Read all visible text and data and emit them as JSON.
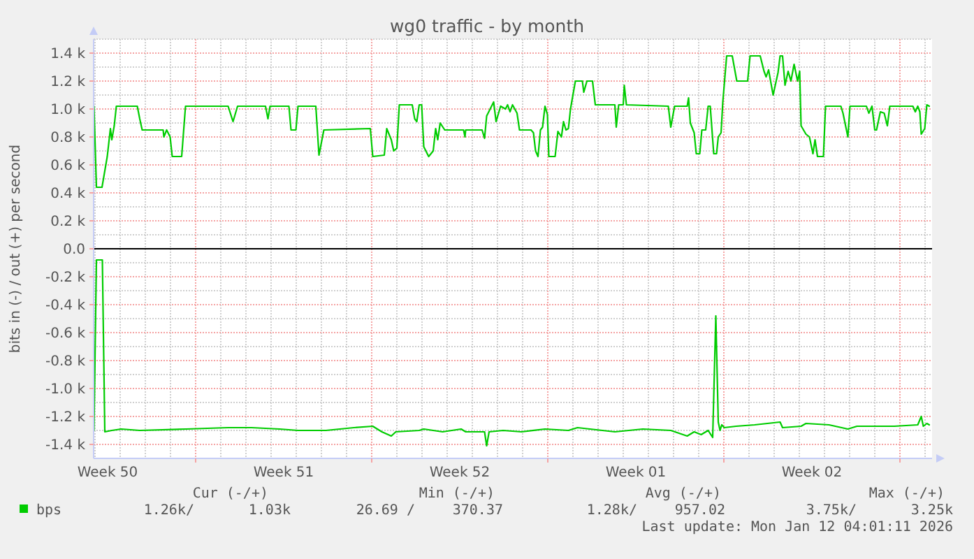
{
  "chart_data": {
    "type": "line",
    "title": "wg0 traffic - by month",
    "ylabel": "bits in (-) / out (+) per second",
    "xlim": [
      "2025-12-09T22:40",
      "2026-01-12T06:40"
    ],
    "xticks": [
      {
        "value": "2025-12-10T12:00",
        "label": "Week 50"
      },
      {
        "value": "2025-12-14T00:00",
        "label": null
      },
      {
        "value": "2025-12-17T12:00",
        "label": "Week 51"
      },
      {
        "value": "2025-12-21T00:00",
        "label": null
      },
      {
        "value": "2025-12-24T12:00",
        "label": "Week 52"
      },
      {
        "value": "2025-12-28T00:00",
        "label": null
      },
      {
        "value": "2025-12-31T12:00",
        "label": "Week 01"
      },
      {
        "value": "2026-01-04T00:00",
        "label": null
      },
      {
        "value": "2026-01-07T12:00",
        "label": "Week 02"
      },
      {
        "value": "2026-01-11T00:00",
        "label": null
      }
    ],
    "ylim": [
      -1500,
      1500
    ],
    "yticks": [
      {
        "value": -1400,
        "label": "-1.4 k"
      },
      {
        "value": -1200,
        "label": "-1.2 k"
      },
      {
        "value": -1000,
        "label": "-1.0 k"
      },
      {
        "value": -800,
        "label": "-0.8 k"
      },
      {
        "value": -600,
        "label": "-0.6 k"
      },
      {
        "value": -400,
        "label": "-0.4 k"
      },
      {
        "value": -200,
        "label": "-0.2 k"
      },
      {
        "value": 0,
        "label": "0.0"
      },
      {
        "value": 200,
        "label": "0.2 k"
      },
      {
        "value": 400,
        "label": "0.4 k"
      },
      {
        "value": 600,
        "label": "0.6 k"
      },
      {
        "value": 800,
        "label": "0.8 k"
      },
      {
        "value": 1000,
        "label": "1.0 k"
      },
      {
        "value": 1200,
        "label": "1.2 k"
      },
      {
        "value": 1400,
        "label": "1.4 k"
      }
    ],
    "grid": true,
    "legend": "bottom",
    "ref_lines": [
      {
        "axis": "y",
        "value": 0,
        "color": "#000000"
      }
    ],
    "series": [
      {
        "name": "bps",
        "color": "#00cc00",
        "x": [
          "2025-12-09T23:00",
          "2025-12-10T01:20",
          "2025-12-10T06:40",
          "2025-12-10T11:40",
          "2025-12-10T14:40",
          "2025-12-10T16:00",
          "2025-12-10T18:20",
          "2025-12-10T20:20",
          "2025-12-11T16:20",
          "2025-12-11T18:40",
          "2025-12-11T21:00",
          "2025-12-12T17:00",
          "2025-12-12T17:40",
          "2025-12-12T20:20",
          "2025-12-12T23:40",
          "2025-12-13T01:40",
          "2025-12-13T10:40",
          "2025-12-13T14:20",
          "2025-12-15T07:00",
          "2025-12-15T11:40",
          "2025-12-15T16:00",
          "2025-12-16T18:40",
          "2025-12-16T21:00",
          "2025-12-16T23:00",
          "2025-12-17T17:00",
          "2025-12-17T19:00",
          "2025-12-17T23:40",
          "2025-12-18T01:40",
          "2025-12-18T18:40",
          "2025-12-18T21:40",
          "2025-12-19T02:20",
          "2025-12-20T22:40",
          "2025-12-21T01:00",
          "2025-12-21T12:00",
          "2025-12-21T14:20",
          "2025-12-21T18:40",
          "2025-12-21T21:00",
          "2025-12-22T00:00",
          "2025-12-22T02:20",
          "2025-12-22T14:40",
          "2025-12-22T17:00",
          "2025-12-22T19:00",
          "2025-12-22T21:20",
          "2025-12-22T23:40",
          "2025-12-23T01:40",
          "2025-12-23T06:20",
          "2025-12-23T10:40",
          "2025-12-23T13:00",
          "2025-12-23T15:00",
          "2025-12-23T17:20",
          "2025-12-23T21:40",
          "2025-12-24T15:40",
          "2025-12-24T17:00",
          "2025-12-24T17:40",
          "2025-12-25T09:20",
          "2025-12-25T11:40",
          "2025-12-25T13:40",
          "2025-12-25T18:20",
          "2025-12-25T20:20",
          "2025-12-25T22:40",
          "2025-12-26T03:00",
          "2025-12-26T07:40",
          "2025-12-26T09:40",
          "2025-12-26T12:00",
          "2025-12-26T14:20",
          "2025-12-26T18:40",
          "2025-12-26T21:00",
          "2025-12-27T08:00",
          "2025-12-27T10:20",
          "2025-12-27T12:20",
          "2025-12-27T14:40",
          "2025-12-27T17:00",
          "2025-12-27T19:00",
          "2025-12-27T21:20",
          "2025-12-27T23:40",
          "2025-12-28T01:00",
          "2025-12-28T07:00",
          "2025-12-28T09:40",
          "2025-12-28T13:00",
          "2025-12-28T15:00",
          "2025-12-28T17:20",
          "2025-12-28T19:40",
          "2025-12-28T21:40",
          "2025-12-29T02:20",
          "2025-12-29T09:00",
          "2025-12-29T10:20",
          "2025-12-29T13:20",
          "2025-12-29T18:40",
          "2025-12-29T21:20",
          "2025-12-30T16:00",
          "2025-12-30T17:20",
          "2025-12-30T19:40",
          "2025-12-31T00:00",
          "2025-12-31T01:00",
          "2025-12-31T03:00",
          "2026-01-01T19:00",
          "2026-01-01T21:20",
          "2026-01-02T01:00",
          "2026-01-02T13:00",
          "2026-01-02T14:20",
          "2026-01-02T16:00",
          "2026-01-02T19:40",
          "2026-01-02T21:40",
          "2026-01-03T01:00",
          "2026-01-03T03:00",
          "2026-01-03T06:40",
          "2026-01-03T09:00",
          "2026-01-03T11:00",
          "2026-01-03T14:20",
          "2026-01-03T17:00",
          "2026-01-03T18:40",
          "2026-01-03T21:20",
          "2026-01-03T23:00",
          "2026-01-04T02:40",
          "2026-01-04T08:00",
          "2026-01-04T12:20",
          "2026-01-04T22:40",
          "2026-01-05T01:00",
          "2026-01-05T10:40",
          "2026-01-05T14:20",
          "2026-01-05T16:20",
          "2026-01-05T18:40",
          "2026-01-05T23:00",
          "2026-01-06T03:40",
          "2026-01-06T05:40",
          "2026-01-06T08:00",
          "2026-01-06T10:20",
          "2026-01-06T13:20",
          "2026-01-06T16:00",
          "2026-01-06T19:00",
          "2026-01-06T22:20",
          "2026-01-07T00:20",
          "2026-01-07T01:40",
          "2026-01-07T06:20",
          "2026-01-07T09:40",
          "2026-01-07T13:00",
          "2026-01-07T15:00",
          "2026-01-07T17:20",
          "2026-01-07T23:00",
          "2026-01-08T01:00",
          "2026-01-08T15:40",
          "2026-01-08T17:40",
          "2026-01-08T22:20",
          "2026-01-09T00:20",
          "2026-01-09T16:00",
          "2026-01-09T18:20",
          "2026-01-09T21:20",
          "2026-01-10T00:00",
          "2026-01-10T01:40",
          "2026-01-10T05:20",
          "2026-01-10T09:00",
          "2026-01-10T12:00",
          "2026-01-10T14:20",
          "2026-01-11T12:20",
          "2026-01-11T14:40",
          "2026-01-11T17:00",
          "2026-01-11T19:00",
          "2026-01-11T20:20",
          "2026-01-11T23:40",
          "2026-01-12T01:40",
          "2026-01-12T04:00"
        ],
        "values": [
          1020,
          440,
          440,
          660,
          860,
          780,
          880,
          1020,
          1020,
          930,
          850,
          850,
          800,
          850,
          800,
          660,
          660,
          1020,
          1020,
          910,
          1020,
          1020,
          930,
          1020,
          1020,
          850,
          850,
          1020,
          1020,
          670,
          850,
          860,
          660,
          670,
          860,
          780,
          700,
          720,
          1030,
          1030,
          930,
          910,
          1030,
          1030,
          730,
          660,
          700,
          860,
          780,
          900,
          850,
          850,
          800,
          850,
          850,
          790,
          950,
          1020,
          1050,
          910,
          1020,
          1000,
          1030,
          980,
          1030,
          970,
          850,
          850,
          830,
          700,
          660,
          850,
          870,
          1020,
          960,
          660,
          660,
          840,
          800,
          910,
          850,
          860,
          1000,
          1200,
          1200,
          1120,
          1200,
          1200,
          1030,
          1030,
          870,
          1030,
          1030,
          1170,
          1030,
          1020,
          870,
          1020,
          1020,
          1080,
          900,
          830,
          680,
          680,
          850,
          850,
          1020,
          1020,
          680,
          680,
          800,
          830,
          1050,
          1380,
          1380,
          1200,
          1200,
          1380,
          1380,
          1270,
          1230,
          1280,
          1100,
          1260,
          1380,
          1380,
          1170,
          1270,
          1200,
          1320,
          1200,
          1270,
          880,
          820,
          800,
          680,
          780,
          660,
          660,
          1020,
          1020,
          970,
          800,
          1020,
          1020,
          970,
          1020,
          850,
          850,
          980,
          970,
          880,
          1020,
          1020,
          980,
          1020,
          980,
          820,
          860,
          1030,
          1020
        ]
      },
      {
        "color": "#00cc00",
        "x": [
          "2025-12-09T23:00",
          "2025-12-10T01:20",
          "2025-12-10T07:00",
          "2025-12-10T09:20",
          "2025-12-10T16:00",
          "2025-12-11T01:00",
          "2025-12-11T18:40",
          "2025-12-13T15:00",
          "2025-12-15T07:00",
          "2025-12-16T05:20",
          "2025-12-17T08:00",
          "2025-12-18T01:40",
          "2025-12-19T04:20",
          "2025-12-20T07:00",
          "2025-12-21T01:00",
          "2025-12-21T09:40",
          "2025-12-21T18:40",
          "2025-12-21T23:00",
          "2025-12-22T21:20",
          "2025-12-23T01:40",
          "2025-12-23T19:40",
          "2025-12-24T13:20",
          "2025-12-24T17:40",
          "2025-12-25T11:40",
          "2025-12-25T13:40",
          "2025-12-25T16:00",
          "2025-12-26T05:20",
          "2025-12-26T23:00",
          "2025-12-27T21:20",
          "2025-12-28T19:40",
          "2025-12-29T04:20",
          "2025-12-30T16:00",
          "2025-12-31T18:40",
          "2026-01-01T21:20",
          "2026-01-02T13:00",
          "2026-01-02T19:40",
          "2026-01-03T02:20",
          "2026-01-03T09:00",
          "2026-01-03T13:20",
          "2026-01-03T16:20",
          "2026-01-03T18:40",
          "2026-01-03T20:20",
          "2026-01-03T22:00",
          "2026-01-04T00:20",
          "2026-01-04T11:40",
          "2026-01-05T05:20",
          "2026-01-06T05:40",
          "2026-01-06T08:00",
          "2026-01-07T01:40",
          "2026-01-07T06:20",
          "2026-01-08T04:20",
          "2026-01-08T22:20",
          "2026-01-09T07:00",
          "2026-01-10T18:40",
          "2026-01-11T17:00",
          "2026-01-11T20:20",
          "2026-01-11T22:20",
          "2026-01-12T01:40",
          "2026-01-12T04:00"
        ],
        "values": [
          -1300,
          -80,
          -80,
          -1310,
          -1300,
          -1290,
          -1300,
          -1290,
          -1280,
          -1280,
          -1290,
          -1300,
          -1300,
          -1280,
          -1270,
          -1310,
          -1340,
          -1310,
          -1300,
          -1290,
          -1310,
          -1290,
          -1310,
          -1310,
          -1410,
          -1310,
          -1300,
          -1310,
          -1290,
          -1300,
          -1280,
          -1310,
          -1290,
          -1300,
          -1340,
          -1310,
          -1330,
          -1300,
          -1350,
          -480,
          -1240,
          -1300,
          -1260,
          -1280,
          -1270,
          -1260,
          -1240,
          -1280,
          -1270,
          -1250,
          -1260,
          -1290,
          -1270,
          -1270,
          -1260,
          -1200,
          -1270,
          -1250,
          -1260
        ]
      }
    ],
    "annotations": [
      "Cur (-/+)",
      "Min (-/+)",
      "Avg (-/+)",
      "Max (-/+)",
      "1.26k/",
      "1.03k",
      "26.69 /",
      "370.37",
      "1.28k/",
      "957.02",
      "3.75k/",
      "3.25k",
      "Last update: Mon Jan 12 04:01:11 2026"
    ]
  }
}
